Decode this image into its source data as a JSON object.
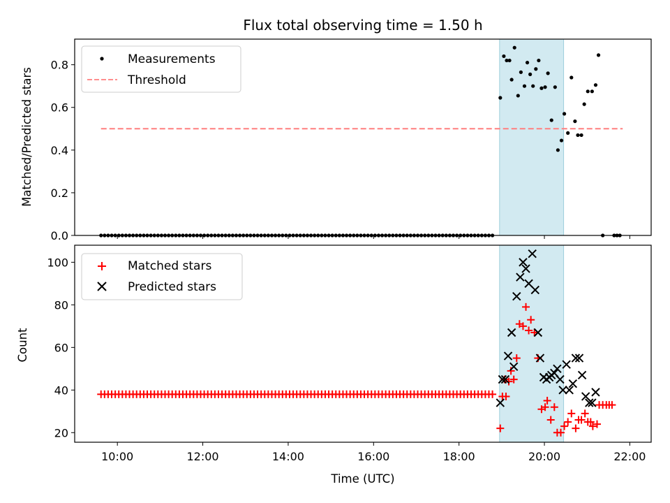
{
  "figure_title": "Flux total observing time = 1.50 h",
  "colors": {
    "measurement": "#000000",
    "threshold": "#ff7f7f",
    "matched": "#ff0000",
    "predicted": "#000000",
    "highlight": "#add8e6"
  },
  "chart_data": [
    {
      "type": "scatter",
      "title": "Flux total observing time = 1.50 h",
      "xlabel": "",
      "ylabel": "Matched/Predicted stars",
      "xlim": [
        "09:00",
        "22:30"
      ],
      "ylim": [
        0,
        0.92
      ],
      "yticks": [
        "0.0",
        "0.2",
        "0.4",
        "0.6",
        "0.8"
      ],
      "grid": false,
      "legend": "top-left",
      "highlight_span": [
        "18:57",
        "20:27"
      ],
      "threshold": {
        "name": "Threshold",
        "value": 0.5,
        "x": [
          "09:37",
          "21:50"
        ],
        "style": "dashed"
      },
      "series": [
        {
          "name": "Measurements",
          "x_minutes_note": "x values are UTC times",
          "zero_run": {
            "from": "09:37",
            "to": "18:50",
            "every_minutes": 5,
            "value": 0.0
          },
          "points": [
            [
              "18:58",
              0.645
            ],
            [
              "19:03",
              0.84
            ],
            [
              "19:07",
              0.82
            ],
            [
              "19:11",
              0.82
            ],
            [
              "19:14",
              0.73
            ],
            [
              "19:18",
              0.88
            ],
            [
              "19:23",
              0.655
            ],
            [
              "19:27",
              0.765
            ],
            [
              "19:32",
              0.7
            ],
            [
              "19:36",
              0.81
            ],
            [
              "19:40",
              0.755
            ],
            [
              "19:44",
              0.7
            ],
            [
              "19:48",
              0.78
            ],
            [
              "19:52",
              0.82
            ],
            [
              "19:56",
              0.69
            ],
            [
              "20:01",
              0.695
            ],
            [
              "20:05",
              0.76
            ],
            [
              "20:10",
              0.54
            ],
            [
              "20:15",
              0.695
            ],
            [
              "20:19",
              0.4
            ],
            [
              "20:24",
              0.445
            ],
            [
              "20:28",
              0.57
            ],
            [
              "20:33",
              0.48
            ],
            [
              "20:38",
              0.74
            ],
            [
              "20:43",
              0.535
            ],
            [
              "20:47",
              0.47
            ],
            [
              "20:52",
              0.47
            ],
            [
              "20:56",
              0.615
            ],
            [
              "21:01",
              0.675
            ],
            [
              "21:07",
              0.675
            ],
            [
              "21:12",
              0.705
            ],
            [
              "21:16",
              0.845
            ],
            [
              "21:22",
              0.0
            ],
            [
              "21:38",
              0.0
            ],
            [
              "21:42",
              0.0
            ],
            [
              "21:46",
              0.0
            ]
          ]
        }
      ]
    },
    {
      "type": "scatter",
      "title": "",
      "xlabel": "Time (UTC)",
      "ylabel": "Count",
      "xlim": [
        "09:00",
        "22:30"
      ],
      "ylim": [
        15.5,
        108
      ],
      "yticks": [
        "20",
        "40",
        "60",
        "80",
        "100"
      ],
      "xticks": [
        "10:00",
        "12:00",
        "14:00",
        "16:00",
        "18:00",
        "20:00",
        "22:00"
      ],
      "grid": false,
      "legend": "top-left",
      "highlight_span": [
        "18:57",
        "20:27"
      ],
      "series": [
        {
          "name": "Matched stars",
          "marker": "plus",
          "constant_run": {
            "from": "09:37",
            "to": "18:50",
            "every_minutes": 5,
            "value": 38
          },
          "points": [
            [
              "18:58",
              22
            ],
            [
              "19:01",
              37
            ],
            [
              "19:04",
              45
            ],
            [
              "19:06",
              37
            ],
            [
              "19:10",
              44
            ],
            [
              "19:13",
              49
            ],
            [
              "19:17",
              45
            ],
            [
              "19:21",
              55
            ],
            [
              "19:25",
              71
            ],
            [
              "19:30",
              70
            ],
            [
              "19:34",
              79
            ],
            [
              "19:38",
              68
            ],
            [
              "19:41",
              73
            ],
            [
              "19:46",
              67
            ],
            [
              "19:51",
              55
            ],
            [
              "19:56",
              31
            ],
            [
              "20:01",
              32
            ],
            [
              "20:04",
              35
            ],
            [
              "20:09",
              26
            ],
            [
              "20:14",
              32
            ],
            [
              "20:18",
              20
            ],
            [
              "20:23",
              20
            ],
            [
              "20:28",
              23
            ],
            [
              "20:33",
              25
            ],
            [
              "20:38",
              29
            ],
            [
              "20:44",
              22
            ],
            [
              "20:48",
              26
            ],
            [
              "20:52",
              26
            ],
            [
              "20:57",
              29
            ],
            [
              "21:01",
              25
            ],
            [
              "21:05",
              25
            ],
            [
              "21:08",
              23
            ],
            [
              "21:14",
              24
            ],
            [
              "21:17",
              33
            ],
            [
              "21:22",
              33
            ],
            [
              "21:27",
              33
            ],
            [
              "21:31",
              33
            ],
            [
              "21:35",
              33
            ]
          ]
        },
        {
          "name": "Predicted stars",
          "marker": "x",
          "points": [
            [
              "18:58",
              34
            ],
            [
              "19:01",
              45
            ],
            [
              "19:05",
              45
            ],
            [
              "19:09",
              56
            ],
            [
              "19:14",
              67
            ],
            [
              "19:17",
              51
            ],
            [
              "19:21",
              84
            ],
            [
              "19:26",
              93
            ],
            [
              "19:30",
              100
            ],
            [
              "19:34",
              97
            ],
            [
              "19:38",
              90
            ],
            [
              "19:43",
              104
            ],
            [
              "19:47",
              87
            ],
            [
              "19:51",
              67
            ],
            [
              "19:54",
              55
            ],
            [
              "19:59",
              46
            ],
            [
              "20:03",
              45
            ],
            [
              "20:07",
              46
            ],
            [
              "20:10",
              47
            ],
            [
              "20:14",
              48
            ],
            [
              "20:18",
              50
            ],
            [
              "20:22",
              45
            ],
            [
              "20:26",
              40
            ],
            [
              "20:31",
              52
            ],
            [
              "20:35",
              40
            ],
            [
              "20:40",
              43
            ],
            [
              "20:44",
              55
            ],
            [
              "20:49",
              55
            ],
            [
              "20:53",
              47
            ],
            [
              "20:58",
              37
            ],
            [
              "21:03",
              34
            ],
            [
              "21:07",
              34
            ],
            [
              "21:12",
              39
            ]
          ]
        }
      ]
    }
  ]
}
